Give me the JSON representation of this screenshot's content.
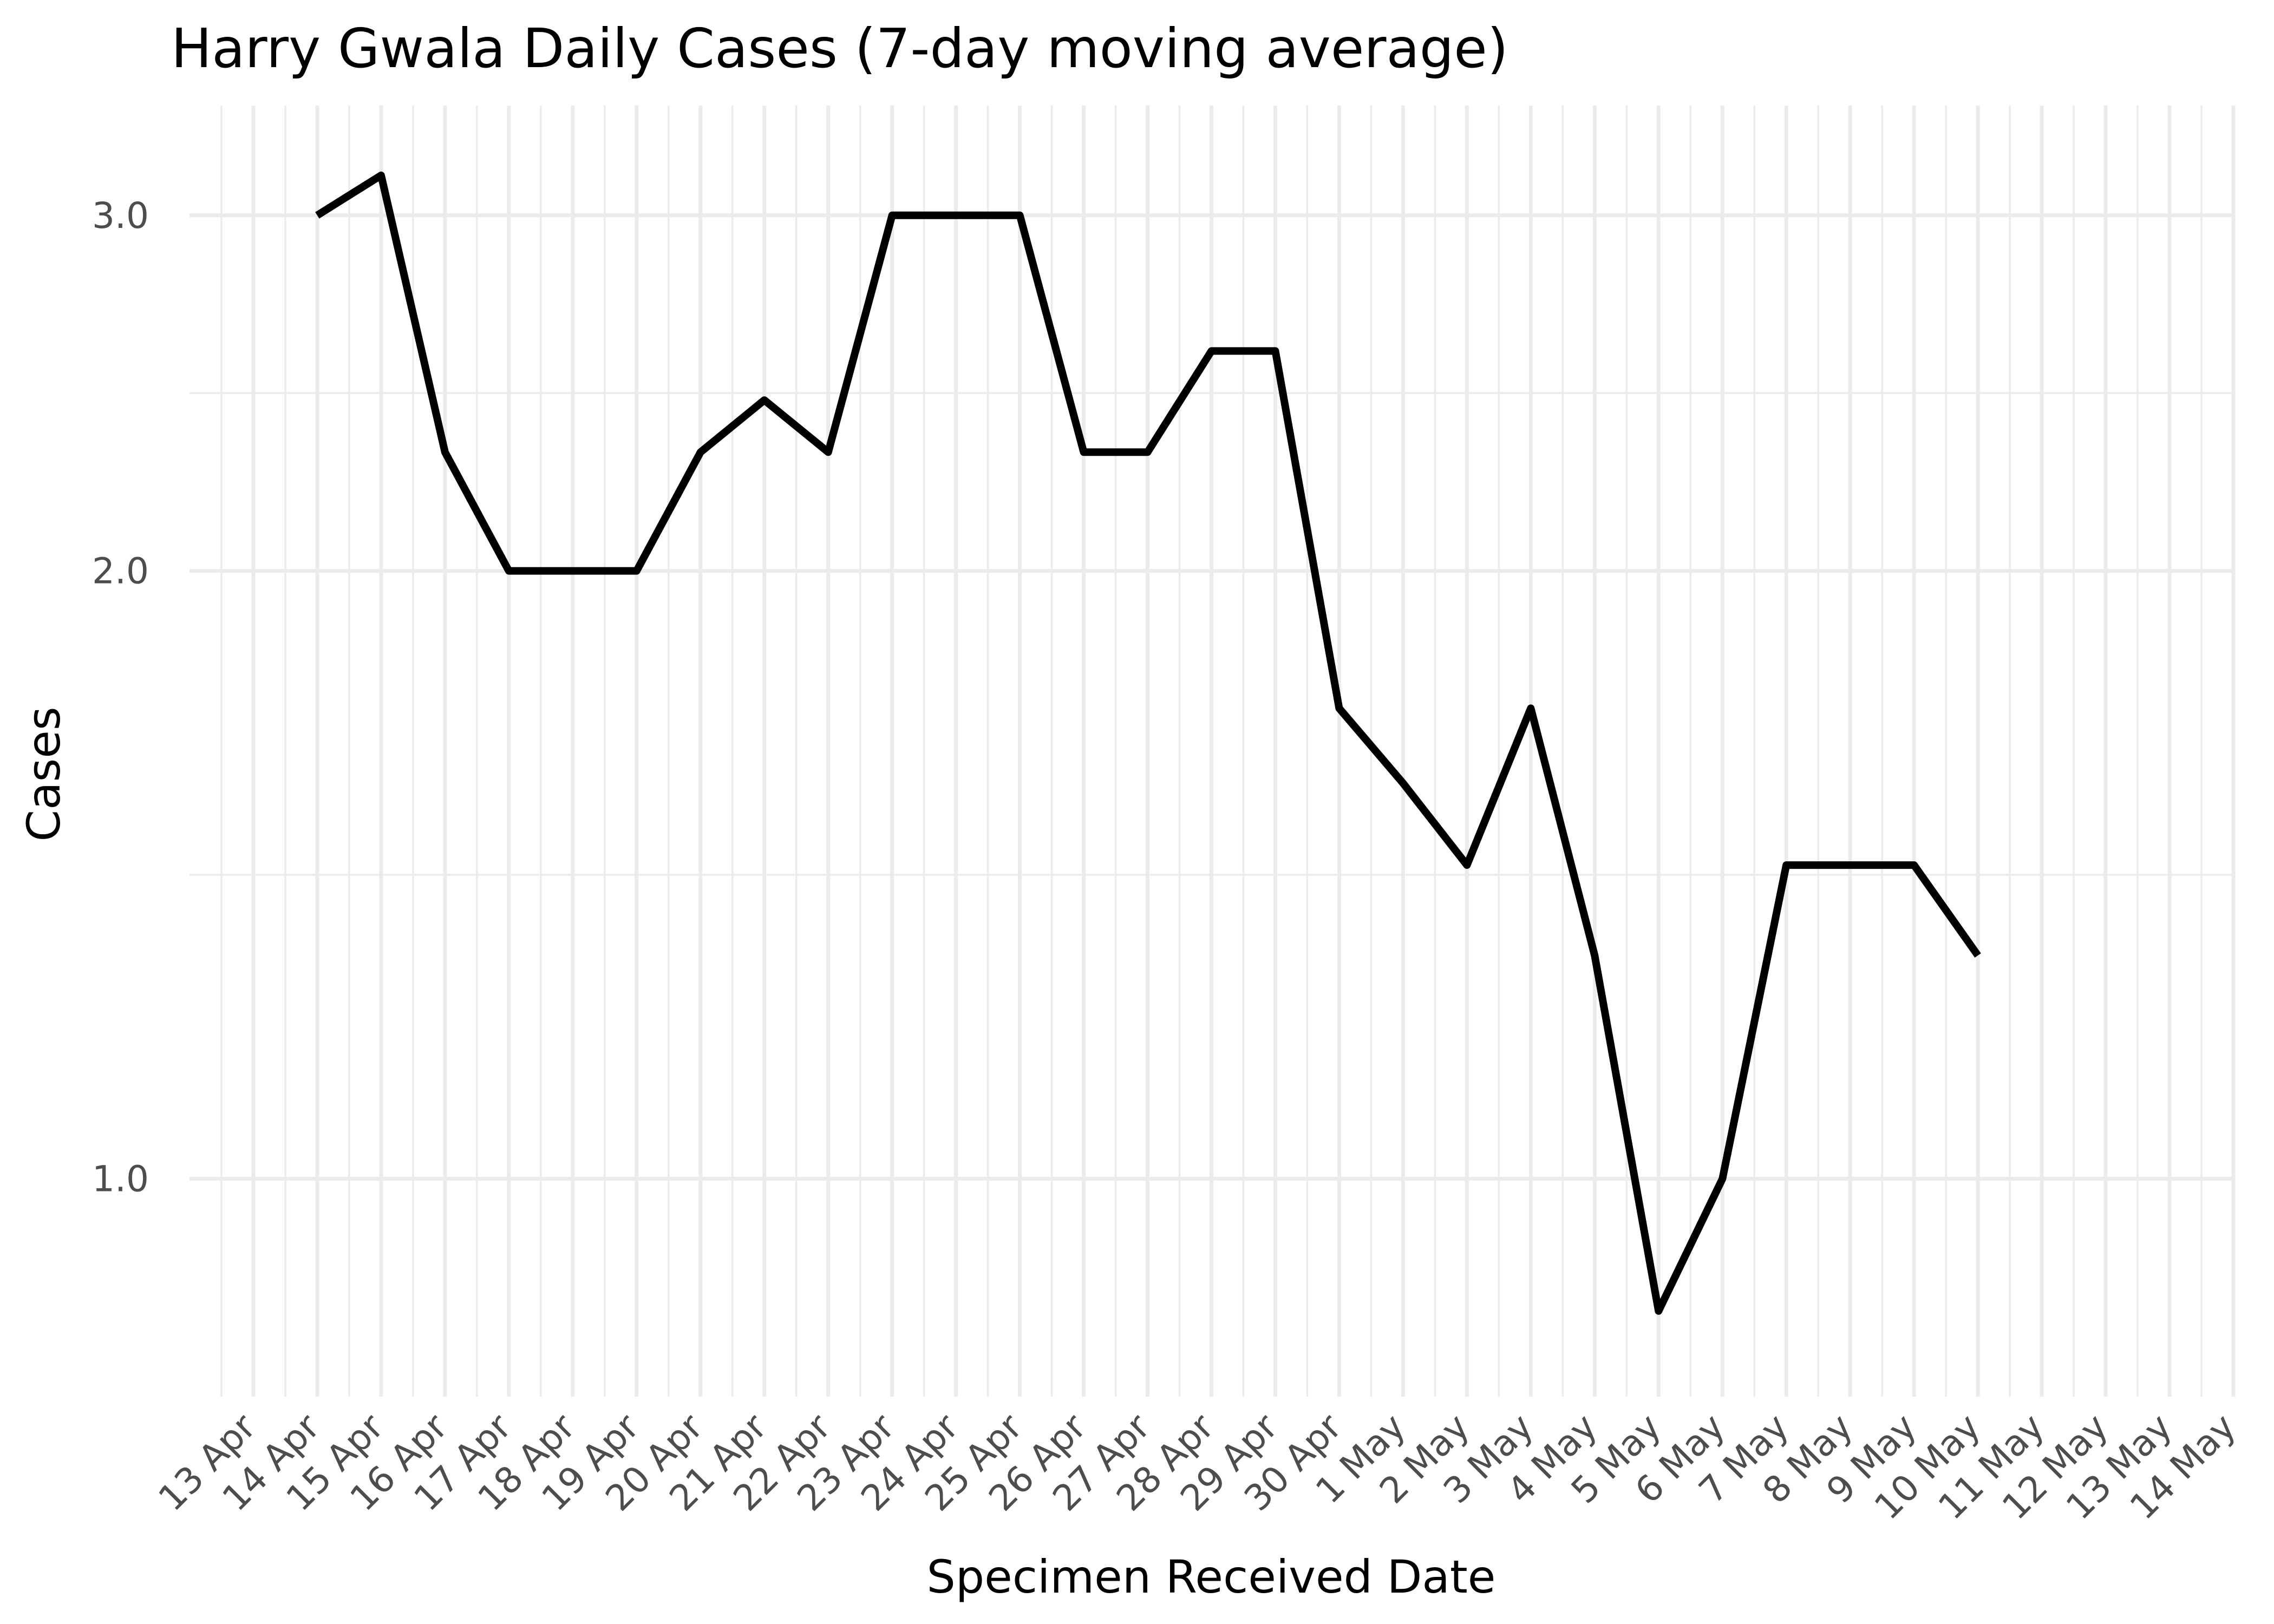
{
  "chart_data": {
    "type": "line",
    "title": "Harry Gwala Daily Cases (7-day moving average)",
    "xlabel": "Specimen Received Date",
    "ylabel": "Cases",
    "y_scale": "log",
    "ylim": [
      0.78,
      3.4
    ],
    "y_ticks": [
      1.0,
      2.0,
      3.0
    ],
    "y_tick_labels": [
      "1.0",
      "2.0",
      "3.0"
    ],
    "xlim": [
      "2020-04-12",
      "2020-05-14"
    ],
    "x_ticks": [
      "2020-04-13",
      "2020-04-14",
      "2020-04-15",
      "2020-04-16",
      "2020-04-17",
      "2020-04-18",
      "2020-04-19",
      "2020-04-20",
      "2020-04-21",
      "2020-04-22",
      "2020-04-23",
      "2020-04-24",
      "2020-04-25",
      "2020-04-26",
      "2020-04-27",
      "2020-04-28",
      "2020-04-29",
      "2020-04-30",
      "2020-05-01",
      "2020-05-02",
      "2020-05-03",
      "2020-05-04",
      "2020-05-05",
      "2020-05-06",
      "2020-05-07",
      "2020-05-08",
      "2020-05-09",
      "2020-05-10",
      "2020-05-11",
      "2020-05-12",
      "2020-05-13",
      "2020-05-14"
    ],
    "x_tick_labels": [
      "13 Apr",
      "14 Apr",
      "15 Apr",
      "16 Apr",
      "17 Apr",
      "18 Apr",
      "19 Apr",
      "20 Apr",
      "21 Apr",
      "22 Apr",
      "23 Apr",
      "24 Apr",
      "25 Apr",
      "26 Apr",
      "27 Apr",
      "28 Apr",
      "29 Apr",
      "30 Apr",
      "1 May",
      "2 May",
      "3 May",
      "4 May",
      "5 May",
      "6 May",
      "7 May",
      "8 May",
      "9 May",
      "10 May",
      "11 May",
      "12 May",
      "13 May",
      "14 May"
    ],
    "grid": true,
    "series": [
      {
        "color": "#000000",
        "x": [
          "2020-04-14",
          "2020-04-15",
          "2020-04-16",
          "2020-04-17",
          "2020-04-18",
          "2020-04-19",
          "2020-04-20",
          "2020-04-21",
          "2020-04-22",
          "2020-04-23",
          "2020-04-24",
          "2020-04-25",
          "2020-04-26",
          "2020-04-27",
          "2020-04-28",
          "2020-04-29",
          "2020-04-30",
          "2020-05-01",
          "2020-05-02",
          "2020-05-03",
          "2020-05-04",
          "2020-05-05",
          "2020-05-06",
          "2020-05-07",
          "2020-05-08",
          "2020-05-09",
          "2020-05-10"
        ],
        "y": [
          3.0,
          3.14,
          2.29,
          2.0,
          2.0,
          2.0,
          2.29,
          2.43,
          2.29,
          3.0,
          3.0,
          3.0,
          2.29,
          2.29,
          2.57,
          2.57,
          1.71,
          1.57,
          1.43,
          1.71,
          1.29,
          0.86,
          1.0,
          1.43,
          1.43,
          1.43,
          1.29
        ]
      }
    ]
  }
}
